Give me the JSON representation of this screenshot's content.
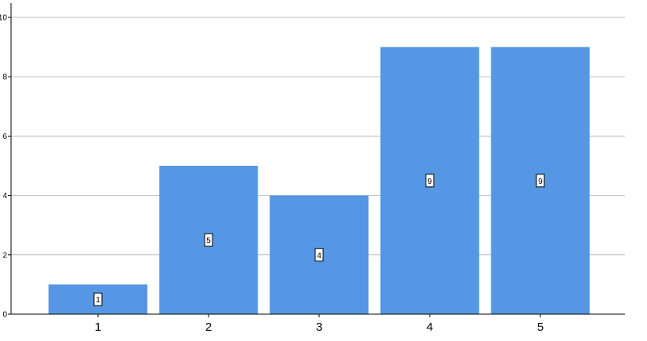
{
  "chart_data": {
    "type": "bar",
    "categories": [
      "1",
      "2",
      "3",
      "4",
      "5"
    ],
    "values": [
      1,
      5,
      4,
      9,
      9
    ],
    "data_labels": [
      "1",
      "5",
      "4",
      "9",
      "9"
    ],
    "title": "",
    "xlabel": "",
    "ylabel": "",
    "ylim": [
      0,
      10
    ],
    "yticks": [
      "0",
      "2",
      "4",
      "6",
      "8",
      "10"
    ],
    "grid": true,
    "legend": "none",
    "bar_color": "#5597E4",
    "grid_color": "#BDBDBD"
  }
}
